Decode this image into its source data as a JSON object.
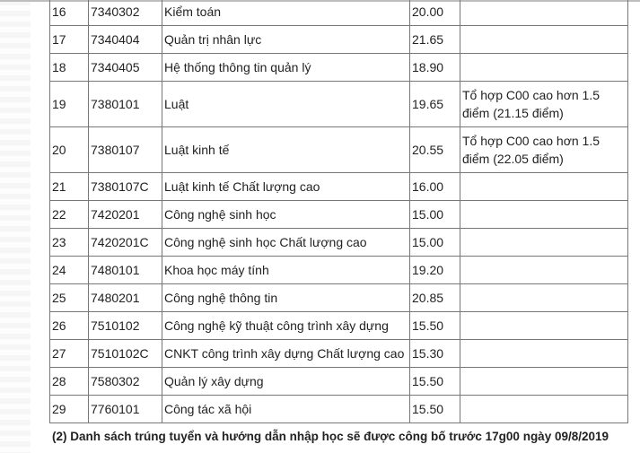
{
  "table": {
    "rows": [
      {
        "no": "16",
        "code": "7340302",
        "name": "Kiểm toán",
        "score": "20.00",
        "note": ""
      },
      {
        "no": "17",
        "code": "7340404",
        "name": "Quản trị nhân lực",
        "score": "21.65",
        "note": ""
      },
      {
        "no": "18",
        "code": "7340405",
        "name": "Hệ thống thông tin quản lý",
        "score": "18.90",
        "note": ""
      },
      {
        "no": "19",
        "code": "7380101",
        "name": "Luật",
        "score": "19.65",
        "note": "Tổ hợp C00 cao hơn 1.5 điểm (21.15 điểm)"
      },
      {
        "no": "20",
        "code": "7380107",
        "name": "Luật kinh tế",
        "score": "20.55",
        "note": "Tổ hợp C00 cao hơn 1.5 điểm (22.05 điểm)"
      },
      {
        "no": "21",
        "code": "7380107C",
        "name": "Luật kinh tế Chất lượng cao",
        "score": "16.00",
        "note": ""
      },
      {
        "no": "22",
        "code": "7420201",
        "name": "Công nghệ sinh học",
        "score": "15.00",
        "note": ""
      },
      {
        "no": "23",
        "code": "7420201C",
        "name": "Công nghệ sinh học Chất lượng cao",
        "score": "15.00",
        "note": ""
      },
      {
        "no": "24",
        "code": "7480101",
        "name": "Khoa học máy tính",
        "score": "19.20",
        "note": ""
      },
      {
        "no": "25",
        "code": "7480201",
        "name": "Công nghệ thông tin",
        "score": "20.85",
        "note": ""
      },
      {
        "no": "26",
        "code": "7510102",
        "name": "Công nghệ kỹ thuật công trình xây dựng",
        "score": "15.50",
        "note": ""
      },
      {
        "no": "27",
        "code": "7510102C",
        "name": "CNKT công trình xây dựng Chất lượng cao",
        "score": "15.30",
        "note": ""
      },
      {
        "no": "28",
        "code": "7580302",
        "name": "Quản lý xây dựng",
        "score": "15.50",
        "note": ""
      },
      {
        "no": "29",
        "code": "7760101",
        "name": "Công tác xã hội",
        "score": "15.50",
        "note": ""
      }
    ]
  },
  "footer": {
    "text": "(2) Danh sách trúng tuyển và hướng dẫn nhập học sẽ được công bố trước 17g00 ngày 09/8/2019"
  }
}
